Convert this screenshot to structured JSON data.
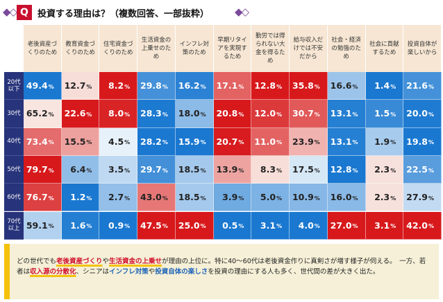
{
  "title": "投資する理由は？（複数回答、一部抜粋）",
  "chart_data": {
    "type": "heatmap",
    "title": "投資する理由は？（複数回答、一部抜粋）",
    "unit": "%",
    "columns": [
      "老後資産づくりのため",
      "教育資金づくりのため",
      "住宅資金づくりのため",
      "生活資金の上乗せのため",
      "インフレ対策のため",
      "早期リタイアを実現するため",
      "勤労では得られない大金を得るため",
      "給与収入だけでは不安だから",
      "社会・経済の勉強のため",
      "社会に貢献するため",
      "投資自体が楽しいから"
    ],
    "rows": [
      "20代以下",
      "30代",
      "40代",
      "50代",
      "60代",
      "70代以上"
    ],
    "values": [
      [
        49.4,
        12.7,
        8.2,
        29.8,
        16.2,
        17.1,
        12.8,
        35.8,
        16.6,
        1.4,
        21.6
      ],
      [
        65.2,
        22.6,
        8.0,
        28.3,
        18.0,
        20.8,
        12.0,
        30.7,
        13.1,
        1.5,
        20.0
      ],
      [
        73.4,
        15.5,
        4.5,
        28.2,
        15.9,
        20.7,
        11.0,
        23.9,
        13.1,
        1.9,
        19.8
      ],
      [
        79.7,
        6.4,
        3.5,
        29.7,
        18.5,
        13.9,
        8.3,
        17.5,
        12.8,
        2.3,
        22.5
      ],
      [
        76.7,
        1.2,
        2.7,
        43.0,
        18.5,
        3.9,
        5.0,
        10.9,
        16.0,
        2.3,
        27.9
      ],
      [
        59.1,
        1.6,
        0.9,
        47.5,
        25.0,
        0.5,
        3.1,
        4.0,
        27.0,
        3.1,
        42.0
      ]
    ]
  },
  "colors": {
    "header_bg": "#f6e6d3",
    "row_label_bg": "#27337a",
    "max_cell": "#d7191c",
    "min_cell": "#1a78d0",
    "note_border": "#f4c20d",
    "note_bg": "#f5f0d7",
    "title_badge": "#c8102e"
  },
  "note": {
    "p1": "どの世代でも",
    "h1": "老後資産づくり",
    "p2": "や",
    "h2": "生活資金の上乗せ",
    "p3": "が理由の上位に。特に40～60代は老後資金作りに真剣さが増す様子が伺える。　一方、若者は",
    "h3": "収入源の分散化",
    "p4": "、シニアは",
    "h4": "インフレ対策",
    "p5": "や",
    "h5": "投資自体の楽しさ",
    "p6": "を投資の理由にする人も多く、世代間の差が大きく出た。"
  }
}
